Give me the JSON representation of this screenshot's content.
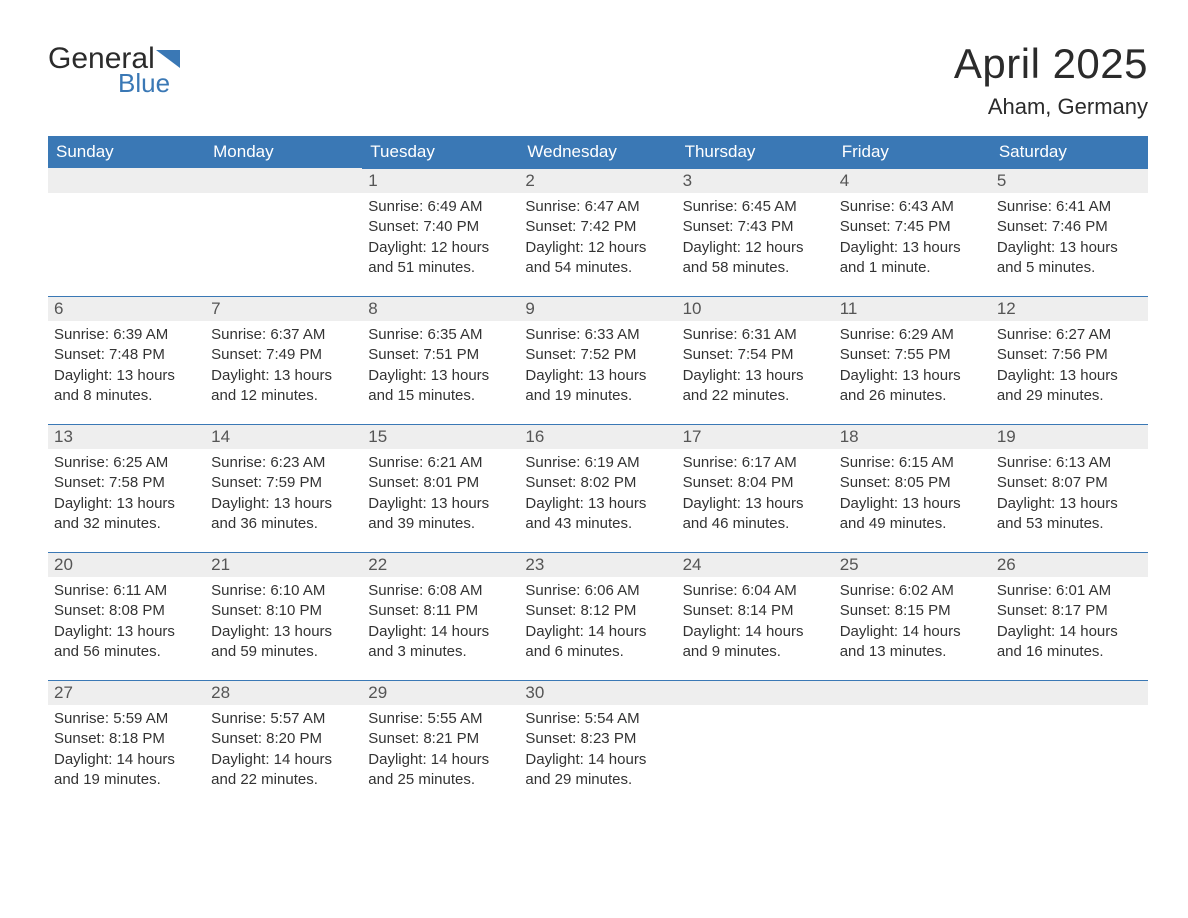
{
  "logo": {
    "text_general": "General",
    "text_blue": "Blue"
  },
  "title": "April 2025",
  "location": "Aham, Germany",
  "colors": {
    "header_bg": "#3a78b5",
    "header_text": "#ffffff",
    "daynum_bg": "#eeeeee",
    "daynum_border": "#3a78b5",
    "body_text": "#333333",
    "page_bg": "#ffffff"
  },
  "columns": [
    "Sunday",
    "Monday",
    "Tuesday",
    "Wednesday",
    "Thursday",
    "Friday",
    "Saturday"
  ],
  "weeks": [
    [
      null,
      null,
      {
        "n": "1",
        "sunrise": "6:49 AM",
        "sunset": "7:40 PM",
        "daylight": "12 hours and 51 minutes."
      },
      {
        "n": "2",
        "sunrise": "6:47 AM",
        "sunset": "7:42 PM",
        "daylight": "12 hours and 54 minutes."
      },
      {
        "n": "3",
        "sunrise": "6:45 AM",
        "sunset": "7:43 PM",
        "daylight": "12 hours and 58 minutes."
      },
      {
        "n": "4",
        "sunrise": "6:43 AM",
        "sunset": "7:45 PM",
        "daylight": "13 hours and 1 minute."
      },
      {
        "n": "5",
        "sunrise": "6:41 AM",
        "sunset": "7:46 PM",
        "daylight": "13 hours and 5 minutes."
      }
    ],
    [
      {
        "n": "6",
        "sunrise": "6:39 AM",
        "sunset": "7:48 PM",
        "daylight": "13 hours and 8 minutes."
      },
      {
        "n": "7",
        "sunrise": "6:37 AM",
        "sunset": "7:49 PM",
        "daylight": "13 hours and 12 minutes."
      },
      {
        "n": "8",
        "sunrise": "6:35 AM",
        "sunset": "7:51 PM",
        "daylight": "13 hours and 15 minutes."
      },
      {
        "n": "9",
        "sunrise": "6:33 AM",
        "sunset": "7:52 PM",
        "daylight": "13 hours and 19 minutes."
      },
      {
        "n": "10",
        "sunrise": "6:31 AM",
        "sunset": "7:54 PM",
        "daylight": "13 hours and 22 minutes."
      },
      {
        "n": "11",
        "sunrise": "6:29 AM",
        "sunset": "7:55 PM",
        "daylight": "13 hours and 26 minutes."
      },
      {
        "n": "12",
        "sunrise": "6:27 AM",
        "sunset": "7:56 PM",
        "daylight": "13 hours and 29 minutes."
      }
    ],
    [
      {
        "n": "13",
        "sunrise": "6:25 AM",
        "sunset": "7:58 PM",
        "daylight": "13 hours and 32 minutes."
      },
      {
        "n": "14",
        "sunrise": "6:23 AM",
        "sunset": "7:59 PM",
        "daylight": "13 hours and 36 minutes."
      },
      {
        "n": "15",
        "sunrise": "6:21 AM",
        "sunset": "8:01 PM",
        "daylight": "13 hours and 39 minutes."
      },
      {
        "n": "16",
        "sunrise": "6:19 AM",
        "sunset": "8:02 PM",
        "daylight": "13 hours and 43 minutes."
      },
      {
        "n": "17",
        "sunrise": "6:17 AM",
        "sunset": "8:04 PM",
        "daylight": "13 hours and 46 minutes."
      },
      {
        "n": "18",
        "sunrise": "6:15 AM",
        "sunset": "8:05 PM",
        "daylight": "13 hours and 49 minutes."
      },
      {
        "n": "19",
        "sunrise": "6:13 AM",
        "sunset": "8:07 PM",
        "daylight": "13 hours and 53 minutes."
      }
    ],
    [
      {
        "n": "20",
        "sunrise": "6:11 AM",
        "sunset": "8:08 PM",
        "daylight": "13 hours and 56 minutes."
      },
      {
        "n": "21",
        "sunrise": "6:10 AM",
        "sunset": "8:10 PM",
        "daylight": "13 hours and 59 minutes."
      },
      {
        "n": "22",
        "sunrise": "6:08 AM",
        "sunset": "8:11 PM",
        "daylight": "14 hours and 3 minutes."
      },
      {
        "n": "23",
        "sunrise": "6:06 AM",
        "sunset": "8:12 PM",
        "daylight": "14 hours and 6 minutes."
      },
      {
        "n": "24",
        "sunrise": "6:04 AM",
        "sunset": "8:14 PM",
        "daylight": "14 hours and 9 minutes."
      },
      {
        "n": "25",
        "sunrise": "6:02 AM",
        "sunset": "8:15 PM",
        "daylight": "14 hours and 13 minutes."
      },
      {
        "n": "26",
        "sunrise": "6:01 AM",
        "sunset": "8:17 PM",
        "daylight": "14 hours and 16 minutes."
      }
    ],
    [
      {
        "n": "27",
        "sunrise": "5:59 AM",
        "sunset": "8:18 PM",
        "daylight": "14 hours and 19 minutes."
      },
      {
        "n": "28",
        "sunrise": "5:57 AM",
        "sunset": "8:20 PM",
        "daylight": "14 hours and 22 minutes."
      },
      {
        "n": "29",
        "sunrise": "5:55 AM",
        "sunset": "8:21 PM",
        "daylight": "14 hours and 25 minutes."
      },
      {
        "n": "30",
        "sunrise": "5:54 AM",
        "sunset": "8:23 PM",
        "daylight": "14 hours and 29 minutes."
      },
      null,
      null,
      null
    ]
  ],
  "labels": {
    "sunrise": "Sunrise: ",
    "sunset": "Sunset: ",
    "daylight": "Daylight: "
  }
}
